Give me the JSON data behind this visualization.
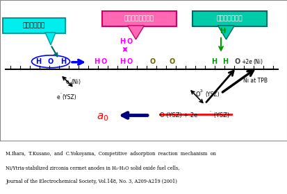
{
  "bg_color": "#add8e6",
  "box1_text": "水蒸気の生成",
  "box1_color": "#00eeee",
  "box2_text": "水蒸気の吸着平衡",
  "box2_color": "#ff69b4",
  "box3_text": "水素の吸着平衡",
  "box3_color": "#00ccaa",
  "citation_line1": "M.Ihara,  T.Kusano,  and  C.Yokoyama,  Competitive  adsorption  reaction  mechanism  on",
  "citation_line2": "Ni/Ytria-stabilized zirconia cermet anodes in H₂-H₂O solid oxide fuel cells,",
  "citation_line3": "Journal of the Electrochemical Society, Vol.148, No. 3, A209-A219 (2001)"
}
